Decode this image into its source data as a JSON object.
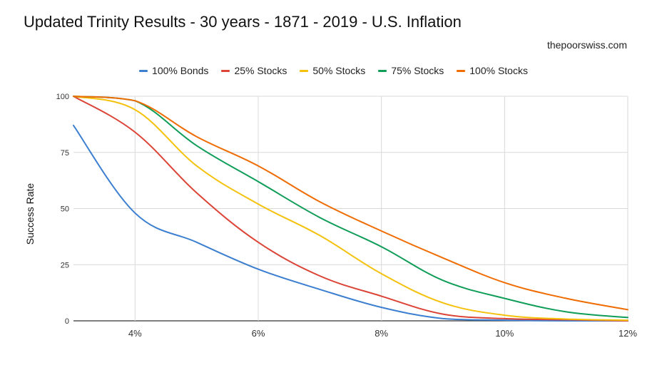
{
  "chart_data": {
    "type": "line",
    "title": "Updated Trinity Results - 30 years - 1871 - 2019 - U.S. Inflation",
    "source_label": "thepoorswiss.com",
    "xlabel": "",
    "ylabel": "Success Rate",
    "xlim": [
      3,
      12
    ],
    "ylim": [
      0,
      100
    ],
    "x_ticks": [
      4,
      6,
      8,
      10,
      12
    ],
    "x_tick_labels": [
      "4%",
      "6%",
      "8%",
      "10%",
      "12%"
    ],
    "y_ticks": [
      0,
      25,
      50,
      75,
      100
    ],
    "y_tick_labels": [
      "0",
      "25",
      "50",
      "75",
      "100"
    ],
    "grid": true,
    "legend_position": "top",
    "x": [
      3,
      4,
      5,
      6,
      7,
      8,
      9,
      10,
      11,
      12
    ],
    "series": [
      {
        "name": "100% Bonds",
        "color": "#3c7fd0",
        "values": [
          87,
          48,
          35,
          23,
          14,
          6,
          1,
          0.3,
          0,
          0
        ]
      },
      {
        "name": "25% Stocks",
        "color": "#db4437",
        "values": [
          100,
          84,
          57,
          35,
          20,
          11,
          3,
          1,
          0.5,
          0
        ]
      },
      {
        "name": "50% Stocks",
        "color": "#f4c20d",
        "values": [
          100,
          94,
          69,
          52,
          38,
          21,
          8,
          2.5,
          0.8,
          0.3
        ]
      },
      {
        "name": "75% Stocks",
        "color": "#0f9d58",
        "values": [
          100,
          98,
          78,
          62,
          46,
          33,
          18,
          10,
          4,
          1.5
        ]
      },
      {
        "name": "100% Stocks",
        "color": "#ef6c00",
        "values": [
          100,
          98,
          82,
          69,
          53,
          40,
          28,
          17,
          10,
          5
        ]
      }
    ]
  }
}
